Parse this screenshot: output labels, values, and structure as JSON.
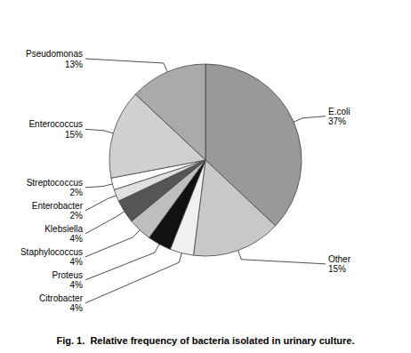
{
  "chart_data": {
    "type": "pie",
    "categories": [
      "E.coli",
      "Other",
      "Citrobacter",
      "Proteus",
      "Staphylococcus",
      "Klebsiella",
      "Enterobacter",
      "Streptococcus",
      "Enterococcus",
      "Pseudomonas"
    ],
    "values": [
      37,
      15,
      4,
      4,
      4,
      4,
      2,
      2,
      15,
      13
    ],
    "value_labels": [
      "37%",
      "15%",
      "4%",
      "4%",
      "4%",
      "4%",
      "2%",
      "2%",
      "15%",
      "13%"
    ],
    "colors": [
      "#999999",
      "#c8c8c8",
      "#f0f0f0",
      "#111111",
      "#bebebe",
      "#555555",
      "#e0e0e0",
      "#ffffff",
      "#d0d0d0",
      "#aaaaaa"
    ],
    "data_labels": true,
    "caption": "Fig. 1.  Relative frequency of bacteria isolated in urinary culture."
  }
}
